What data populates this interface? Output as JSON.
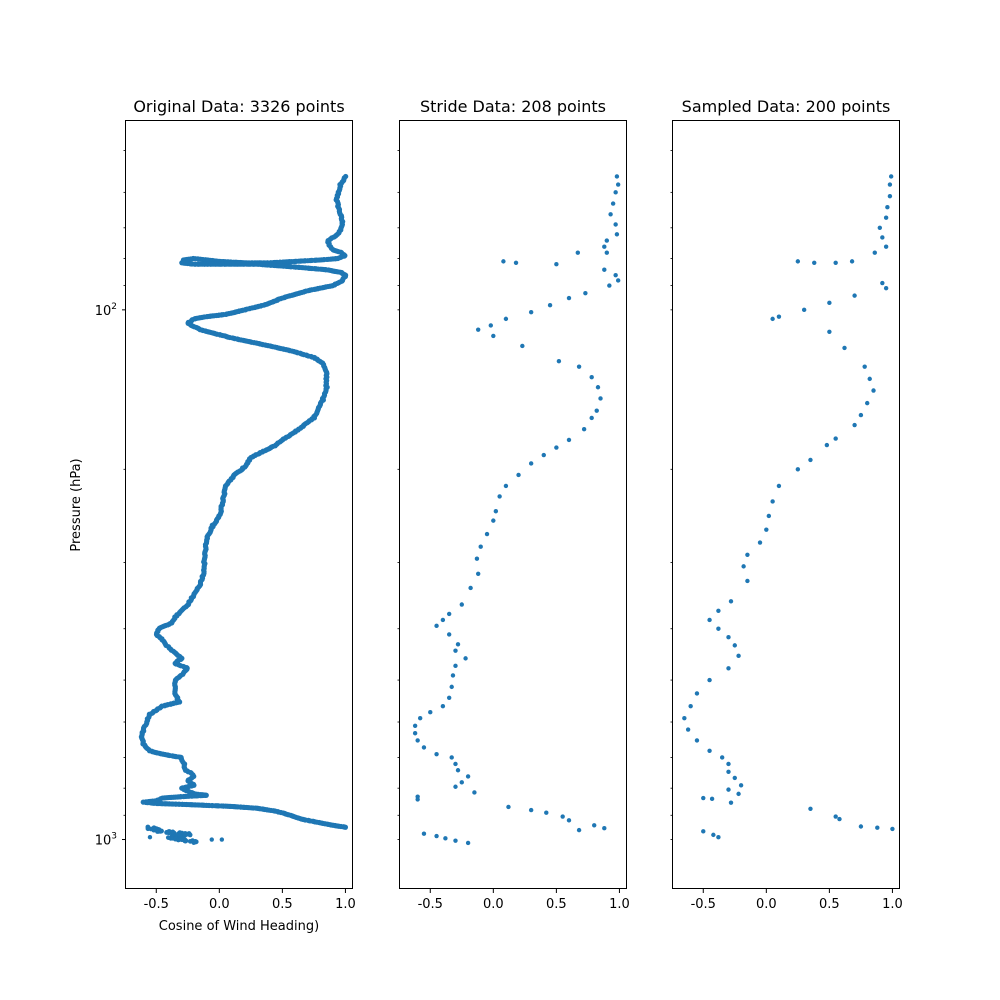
{
  "colors": {
    "marker": "#1f77b4",
    "frame": "#000000",
    "background": "#ffffff"
  },
  "chart_data": [
    {
      "type": "scatter",
      "title": "Original Data: 3326 points",
      "xlabel": "Cosine of Wind Heading)",
      "ylabel": "Pressure (hPa)",
      "xlim": [
        -0.74,
        1.06
      ],
      "ylim": [
        1240,
        44
      ],
      "yscale": "log",
      "xticks": [
        "-0.5",
        "0.0",
        "0.5",
        "1.0"
      ],
      "xtick_values": [
        -0.5,
        0.0,
        0.5,
        1.0
      ],
      "yticks_major": [
        {
          "value": 100,
          "label": "10",
          "exp": "2"
        },
        {
          "value": 1000,
          "label": "10",
          "exp": "3"
        }
      ],
      "yticks_minor": [
        50,
        60,
        70,
        80,
        90,
        200,
        300,
        400,
        500,
        600,
        700,
        800,
        900
      ],
      "grid": false,
      "profile": [
        [
          1.0,
          56
        ],
        [
          0.96,
          58
        ],
        [
          0.93,
          62
        ],
        [
          0.96,
          66
        ],
        [
          0.98,
          69
        ],
        [
          0.94,
          72
        ],
        [
          0.86,
          74
        ],
        [
          0.88,
          76
        ],
        [
          0.9,
          77
        ],
        [
          0.97,
          78
        ],
        [
          1.0,
          79
        ],
        [
          0.94,
          80
        ],
        [
          0.8,
          80.5
        ],
        [
          0.6,
          81
        ],
        [
          0.4,
          81.5
        ],
        [
          0.2,
          81.5
        ],
        [
          0.0,
          81
        ],
        [
          -0.1,
          80.5
        ],
        [
          -0.2,
          80
        ],
        [
          -0.28,
          80.5
        ],
        [
          -0.3,
          81.5
        ],
        [
          -0.2,
          82
        ],
        [
          0.0,
          82
        ],
        [
          0.3,
          82
        ],
        [
          0.6,
          83
        ],
        [
          0.85,
          84
        ],
        [
          0.97,
          85
        ],
        [
          1.0,
          86
        ],
        [
          0.98,
          88
        ],
        [
          0.9,
          90
        ],
        [
          0.7,
          92
        ],
        [
          0.5,
          95
        ],
        [
          0.35,
          98
        ],
        [
          0.2,
          100
        ],
        [
          0.05,
          102
        ],
        [
          -0.1,
          103
        ],
        [
          -0.2,
          104
        ],
        [
          -0.25,
          106
        ],
        [
          -0.15,
          109
        ],
        [
          0.1,
          113
        ],
        [
          0.4,
          117
        ],
        [
          0.6,
          120
        ],
        [
          0.75,
          123
        ],
        [
          0.82,
          126
        ],
        [
          0.85,
          132
        ],
        [
          0.85,
          140
        ],
        [
          0.82,
          148
        ],
        [
          0.78,
          155
        ],
        [
          0.75,
          160
        ],
        [
          0.6,
          170
        ],
        [
          0.5,
          176
        ],
        [
          0.45,
          180
        ],
        [
          0.25,
          190
        ],
        [
          0.2,
          198
        ],
        [
          0.12,
          205
        ],
        [
          0.05,
          215
        ],
        [
          0.02,
          235
        ],
        [
          0.0,
          245
        ],
        [
          -0.05,
          255
        ],
        [
          -0.1,
          270
        ],
        [
          -0.12,
          295
        ],
        [
          -0.12,
          310
        ],
        [
          -0.15,
          330
        ],
        [
          -0.25,
          360
        ],
        [
          -0.35,
          380
        ],
        [
          -0.38,
          390
        ],
        [
          -0.48,
          400
        ],
        [
          -0.5,
          410
        ],
        [
          -0.45,
          420
        ],
        [
          -0.4,
          435
        ],
        [
          -0.35,
          445
        ],
        [
          -0.3,
          455
        ],
        [
          -0.35,
          465
        ],
        [
          -0.25,
          475
        ],
        [
          -0.3,
          490
        ],
        [
          -0.35,
          500
        ],
        [
          -0.35,
          530
        ],
        [
          -0.32,
          550
        ],
        [
          -0.45,
          560
        ],
        [
          -0.55,
          580
        ],
        [
          -0.6,
          620
        ],
        [
          -0.62,
          640
        ],
        [
          -0.6,
          660
        ],
        [
          -0.55,
          680
        ],
        [
          -0.45,
          690
        ],
        [
          -0.3,
          700
        ],
        [
          -0.28,
          720
        ],
        [
          -0.27,
          740
        ],
        [
          -0.22,
          750
        ],
        [
          -0.2,
          760
        ],
        [
          -0.25,
          775
        ],
        [
          -0.2,
          790
        ],
        [
          -0.3,
          800
        ],
        [
          -0.2,
          820
        ],
        [
          -0.1,
          825
        ],
        [
          -0.3,
          830
        ],
        [
          -0.45,
          835
        ],
        [
          -0.5,
          845
        ],
        [
          -0.6,
          850
        ],
        [
          -0.5,
          855
        ],
        [
          -0.3,
          858
        ],
        [
          -0.1,
          862
        ],
        [
          0.1,
          866
        ],
        [
          0.3,
          873
        ],
        [
          0.45,
          884
        ],
        [
          0.55,
          898
        ],
        [
          0.65,
          915
        ],
        [
          0.8,
          930
        ],
        [
          0.9,
          940
        ],
        [
          0.98,
          946
        ],
        [
          1.0,
          948
        ]
      ],
      "cluster": [
        [
          -0.55,
          950
        ],
        [
          -0.5,
          958
        ],
        [
          -0.45,
          965
        ],
        [
          -0.38,
          970
        ],
        [
          -0.3,
          974
        ],
        [
          -0.25,
          978
        ],
        [
          -0.35,
          985
        ],
        [
          -0.38,
          993
        ],
        [
          -0.3,
          1000
        ],
        [
          -0.22,
          1008
        ],
        [
          -0.18,
          1012
        ]
      ],
      "outliers": [
        [
          -0.55,
          990
        ],
        [
          0.02,
          1000
        ],
        [
          -0.06,
          1000
        ]
      ]
    },
    {
      "type": "scatter",
      "title": "Stride Data: 208 points",
      "xlim": [
        -0.74,
        1.06
      ],
      "ylim": [
        1240,
        44
      ],
      "yscale": "log",
      "xticks": [
        "-0.5",
        "0.0",
        "0.5",
        "1.0"
      ],
      "xtick_values": [
        -0.5,
        0.0,
        0.5,
        1.0
      ],
      "yticks_minor": [
        50,
        60,
        70,
        80,
        90,
        100,
        200,
        300,
        400,
        500,
        600,
        700,
        800,
        900,
        1000
      ],
      "grid": false,
      "points": [
        [
          0.98,
          56
        ],
        [
          0.99,
          58
        ],
        [
          0.97,
          60
        ],
        [
          0.95,
          63
        ],
        [
          0.93,
          66
        ],
        [
          0.97,
          69
        ],
        [
          0.98,
          72
        ],
        [
          0.9,
          74
        ],
        [
          0.88,
          76
        ],
        [
          0.9,
          78
        ],
        [
          0.67,
          78
        ],
        [
          0.08,
          81
        ],
        [
          0.18,
          81.5
        ],
        [
          0.5,
          82
        ],
        [
          0.88,
          84
        ],
        [
          0.97,
          86
        ],
        [
          0.99,
          88
        ],
        [
          0.92,
          90
        ],
        [
          0.73,
          93
        ],
        [
          0.6,
          95
        ],
        [
          0.45,
          98
        ],
        [
          0.3,
          101
        ],
        [
          0.1,
          104
        ],
        [
          -0.02,
          107
        ],
        [
          -0.12,
          109
        ],
        [
          0.0,
          112
        ],
        [
          0.23,
          117
        ],
        [
          0.52,
          125
        ],
        [
          0.68,
          128
        ],
        [
          0.78,
          134
        ],
        [
          0.83,
          140
        ],
        [
          0.85,
          147
        ],
        [
          0.82,
          155
        ],
        [
          0.78,
          160
        ],
        [
          0.72,
          168
        ],
        [
          0.6,
          176
        ],
        [
          0.5,
          182
        ],
        [
          0.4,
          188
        ],
        [
          0.3,
          195
        ],
        [
          0.2,
          205
        ],
        [
          0.1,
          215
        ],
        [
          0.05,
          225
        ],
        [
          0.02,
          240
        ],
        [
          0.0,
          250
        ],
        [
          -0.05,
          265
        ],
        [
          -0.1,
          280
        ],
        [
          -0.13,
          295
        ],
        [
          -0.12,
          315
        ],
        [
          -0.18,
          335
        ],
        [
          -0.25,
          360
        ],
        [
          -0.35,
          375
        ],
        [
          -0.4,
          385
        ],
        [
          -0.45,
          395
        ],
        [
          -0.35,
          410
        ],
        [
          -0.28,
          428
        ],
        [
          -0.3,
          440
        ],
        [
          -0.22,
          455
        ],
        [
          -0.3,
          470
        ],
        [
          -0.32,
          490
        ],
        [
          -0.33,
          515
        ],
        [
          -0.35,
          540
        ],
        [
          -0.4,
          560
        ],
        [
          -0.5,
          575
        ],
        [
          -0.58,
          590
        ],
        [
          -0.62,
          610
        ],
        [
          -0.62,
          630
        ],
        [
          -0.6,
          650
        ],
        [
          -0.55,
          670
        ],
        [
          -0.45,
          690
        ],
        [
          -0.33,
          700
        ],
        [
          -0.3,
          720
        ],
        [
          -0.28,
          740
        ],
        [
          -0.2,
          760
        ],
        [
          -0.25,
          780
        ],
        [
          -0.3,
          795
        ],
        [
          -0.15,
          815
        ],
        [
          -0.6,
          830
        ],
        [
          -0.6,
          840
        ],
        [
          0.12,
          868
        ],
        [
          0.3,
          880
        ],
        [
          0.42,
          890
        ],
        [
          0.55,
          905
        ],
        [
          0.6,
          920
        ],
        [
          0.8,
          940
        ],
        [
          0.88,
          952
        ],
        [
          0.68,
          960
        ],
        [
          -0.55,
          975
        ],
        [
          -0.45,
          985
        ],
        [
          -0.38,
          995
        ],
        [
          -0.3,
          1005
        ],
        [
          -0.2,
          1015
        ]
      ]
    },
    {
      "type": "scatter",
      "title": "Sampled Data: 200 points",
      "xlim": [
        -0.74,
        1.06
      ],
      "ylim": [
        1240,
        44
      ],
      "yscale": "log",
      "xticks": [
        "-0.5",
        "0.0",
        "0.5",
        "1.0"
      ],
      "xtick_values": [
        -0.5,
        0.0,
        0.5,
        1.0
      ],
      "yticks_minor": [
        50,
        60,
        70,
        80,
        90,
        100,
        200,
        300,
        400,
        500,
        600,
        700,
        800,
        900,
        1000
      ],
      "grid": false,
      "points": [
        [
          0.99,
          56
        ],
        [
          0.98,
          58
        ],
        [
          0.98,
          61
        ],
        [
          0.96,
          64
        ],
        [
          0.95,
          67
        ],
        [
          0.9,
          70
        ],
        [
          0.92,
          73
        ],
        [
          0.95,
          76
        ],
        [
          0.86,
          78
        ],
        [
          0.25,
          81
        ],
        [
          0.38,
          81.5
        ],
        [
          0.55,
          81.5
        ],
        [
          0.68,
          81
        ],
        [
          0.92,
          89
        ],
        [
          0.95,
          91
        ],
        [
          0.7,
          94
        ],
        [
          0.5,
          97
        ],
        [
          0.3,
          100
        ],
        [
          0.1,
          103
        ],
        [
          0.05,
          104
        ],
        [
          0.5,
          110
        ],
        [
          0.62,
          118
        ],
        [
          0.78,
          128
        ],
        [
          0.82,
          135
        ],
        [
          0.85,
          142
        ],
        [
          0.8,
          150
        ],
        [
          0.75,
          158
        ],
        [
          0.7,
          165
        ],
        [
          0.55,
          175
        ],
        [
          0.48,
          180
        ],
        [
          0.35,
          192
        ],
        [
          0.25,
          200
        ],
        [
          0.1,
          215
        ],
        [
          0.05,
          230
        ],
        [
          0.02,
          245
        ],
        [
          0.0,
          260
        ],
        [
          -0.05,
          275
        ],
        [
          -0.15,
          290
        ],
        [
          -0.18,
          305
        ],
        [
          -0.15,
          325
        ],
        [
          -0.28,
          355
        ],
        [
          -0.38,
          370
        ],
        [
          -0.45,
          385
        ],
        [
          -0.38,
          400
        ],
        [
          -0.3,
          415
        ],
        [
          -0.25,
          430
        ],
        [
          -0.22,
          450
        ],
        [
          -0.3,
          475
        ],
        [
          -0.45,
          500
        ],
        [
          -0.55,
          530
        ],
        [
          -0.6,
          560
        ],
        [
          -0.65,
          590
        ],
        [
          -0.62,
          620
        ],
        [
          -0.55,
          650
        ],
        [
          -0.45,
          680
        ],
        [
          -0.35,
          700
        ],
        [
          -0.3,
          720
        ],
        [
          -0.3,
          745
        ],
        [
          -0.25,
          765
        ],
        [
          -0.2,
          790
        ],
        [
          -0.3,
          805
        ],
        [
          -0.22,
          820
        ],
        [
          -0.5,
          835
        ],
        [
          -0.43,
          838
        ],
        [
          -0.28,
          852
        ],
        [
          0.35,
          875
        ],
        [
          0.55,
          905
        ],
        [
          0.58,
          915
        ],
        [
          0.75,
          945
        ],
        [
          0.88,
          950
        ],
        [
          1.0,
          955
        ],
        [
          -0.5,
          965
        ],
        [
          -0.42,
          980
        ],
        [
          -0.38,
          990
        ]
      ]
    }
  ]
}
